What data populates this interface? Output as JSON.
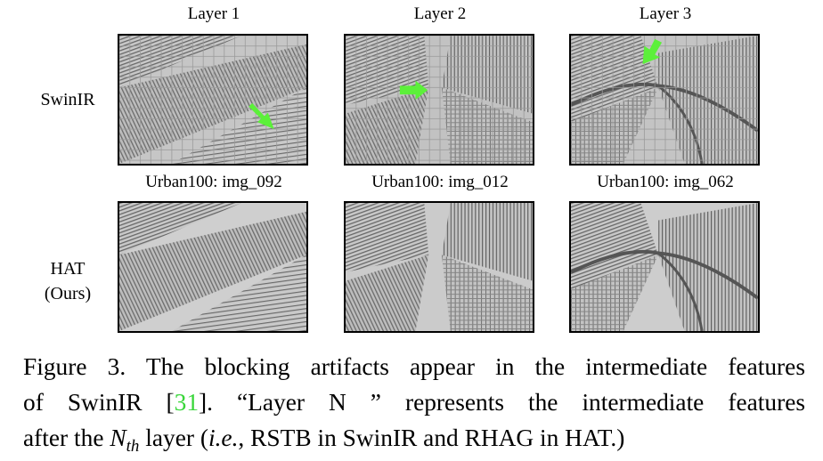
{
  "figure": {
    "column_headers": [
      "Layer 1",
      "Layer 2",
      "Layer 3"
    ],
    "rows": [
      {
        "label_lines": [
          "SwinIR"
        ],
        "images": [
          "swinir-layer1",
          "swinir-layer2",
          "swinir-layer3"
        ]
      },
      {
        "label_lines": [
          "HAT",
          "(Ours)"
        ],
        "images": [
          "hat-layer1",
          "hat-layer2",
          "hat-layer3"
        ]
      }
    ],
    "image_captions": [
      "Urban100: img_092",
      "Urban100: img_012",
      "Urban100: img_062"
    ],
    "arrow_color": "#5cf03a",
    "cite_color": "#39d63a"
  },
  "caption": {
    "line1": "Figure 3. The blocking artifacts appear in the intermediate features",
    "line2_prefix": "of SwinIR [",
    "cite": "31",
    "line2_suffix": "].  “Layer N ” represents the intermediate features",
    "line3_prefix": "after the ",
    "math_base": "N",
    "math_sub": "th",
    "line3_mid": " layer (",
    "line3_ital": "i.e.",
    "line3_suffix": ", RSTB in SwinIR and RHAG in HAT.)"
  }
}
